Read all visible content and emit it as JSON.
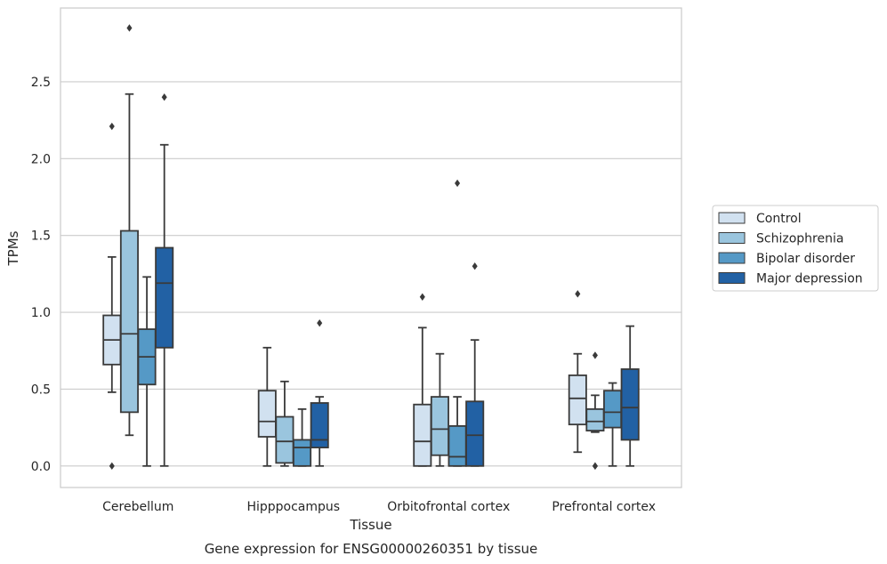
{
  "chart_data": {
    "type": "box",
    "title": "",
    "caption": "Gene expression for ENSG00000260351 by tissue",
    "xlabel": "Tissue",
    "ylabel": "TPMs",
    "ylim": [
      -0.14,
      2.98
    ],
    "yticks": [
      "0.0",
      "0.5",
      "1.0",
      "1.5",
      "2.0",
      "2.5"
    ],
    "grid": "horizontal",
    "legend_position": "right",
    "categories": [
      "Cerebellum",
      "Hipppocampus",
      "Orbitofrontal cortex",
      "Prefrontal cortex"
    ],
    "series": [
      {
        "name": "Control",
        "color": "#d1e1f0",
        "boxes": [
          {
            "whisker_low": 0.48,
            "q1": 0.66,
            "median": 0.82,
            "q3": 0.98,
            "whisker_high": 1.36,
            "outliers": [
              0.0,
              2.21
            ]
          },
          {
            "whisker_low": 0.0,
            "q1": 0.19,
            "median": 0.29,
            "q3": 0.49,
            "whisker_high": 0.77,
            "outliers": []
          },
          {
            "whisker_low": 0.0,
            "q1": 0.0,
            "median": 0.16,
            "q3": 0.4,
            "whisker_high": 0.9,
            "outliers": [
              1.1
            ]
          },
          {
            "whisker_low": 0.09,
            "q1": 0.27,
            "median": 0.44,
            "q3": 0.59,
            "whisker_high": 0.73,
            "outliers": [
              1.12
            ]
          }
        ]
      },
      {
        "name": "Schizophrenia",
        "color": "#9ac5de",
        "boxes": [
          {
            "whisker_low": 0.2,
            "q1": 0.35,
            "median": 0.86,
            "q3": 1.53,
            "whisker_high": 2.42,
            "outliers": [
              2.85
            ]
          },
          {
            "whisker_low": 0.0,
            "q1": 0.02,
            "median": 0.16,
            "q3": 0.32,
            "whisker_high": 0.55,
            "outliers": []
          },
          {
            "whisker_low": 0.0,
            "q1": 0.07,
            "median": 0.24,
            "q3": 0.45,
            "whisker_high": 0.73,
            "outliers": []
          },
          {
            "whisker_low": 0.22,
            "q1": 0.23,
            "median": 0.29,
            "q3": 0.37,
            "whisker_high": 0.46,
            "outliers": [
              0.72,
              0.0,
              0.0
            ]
          }
        ]
      },
      {
        "name": "Bipolar disorder",
        "color": "#5599c6",
        "boxes": [
          {
            "whisker_low": 0.0,
            "q1": 0.53,
            "median": 0.71,
            "q3": 0.89,
            "whisker_high": 1.23,
            "outliers": []
          },
          {
            "whisker_low": 0.0,
            "q1": 0.0,
            "median": 0.12,
            "q3": 0.17,
            "whisker_high": 0.37,
            "outliers": []
          },
          {
            "whisker_low": 0.0,
            "q1": 0.0,
            "median": 0.06,
            "q3": 0.26,
            "whisker_high": 0.45,
            "outliers": [
              1.84
            ]
          },
          {
            "whisker_low": 0.0,
            "q1": 0.25,
            "median": 0.35,
            "q3": 0.49,
            "whisker_high": 0.54,
            "outliers": []
          }
        ]
      },
      {
        "name": "Major depression",
        "color": "#2261a4",
        "boxes": [
          {
            "whisker_low": 0.0,
            "q1": 0.77,
            "median": 1.19,
            "q3": 1.42,
            "whisker_high": 2.09,
            "outliers": [
              2.4
            ]
          },
          {
            "whisker_low": 0.0,
            "q1": 0.12,
            "median": 0.17,
            "q3": 0.41,
            "whisker_high": 0.45,
            "outliers": [
              0.93
            ]
          },
          {
            "whisker_low": 0.0,
            "q1": 0.0,
            "median": 0.2,
            "q3": 0.42,
            "whisker_high": 0.82,
            "outliers": [
              1.3
            ]
          },
          {
            "whisker_low": 0.0,
            "q1": 0.17,
            "median": 0.38,
            "q3": 0.63,
            "whisker_high": 0.91,
            "outliers": []
          }
        ]
      }
    ]
  }
}
